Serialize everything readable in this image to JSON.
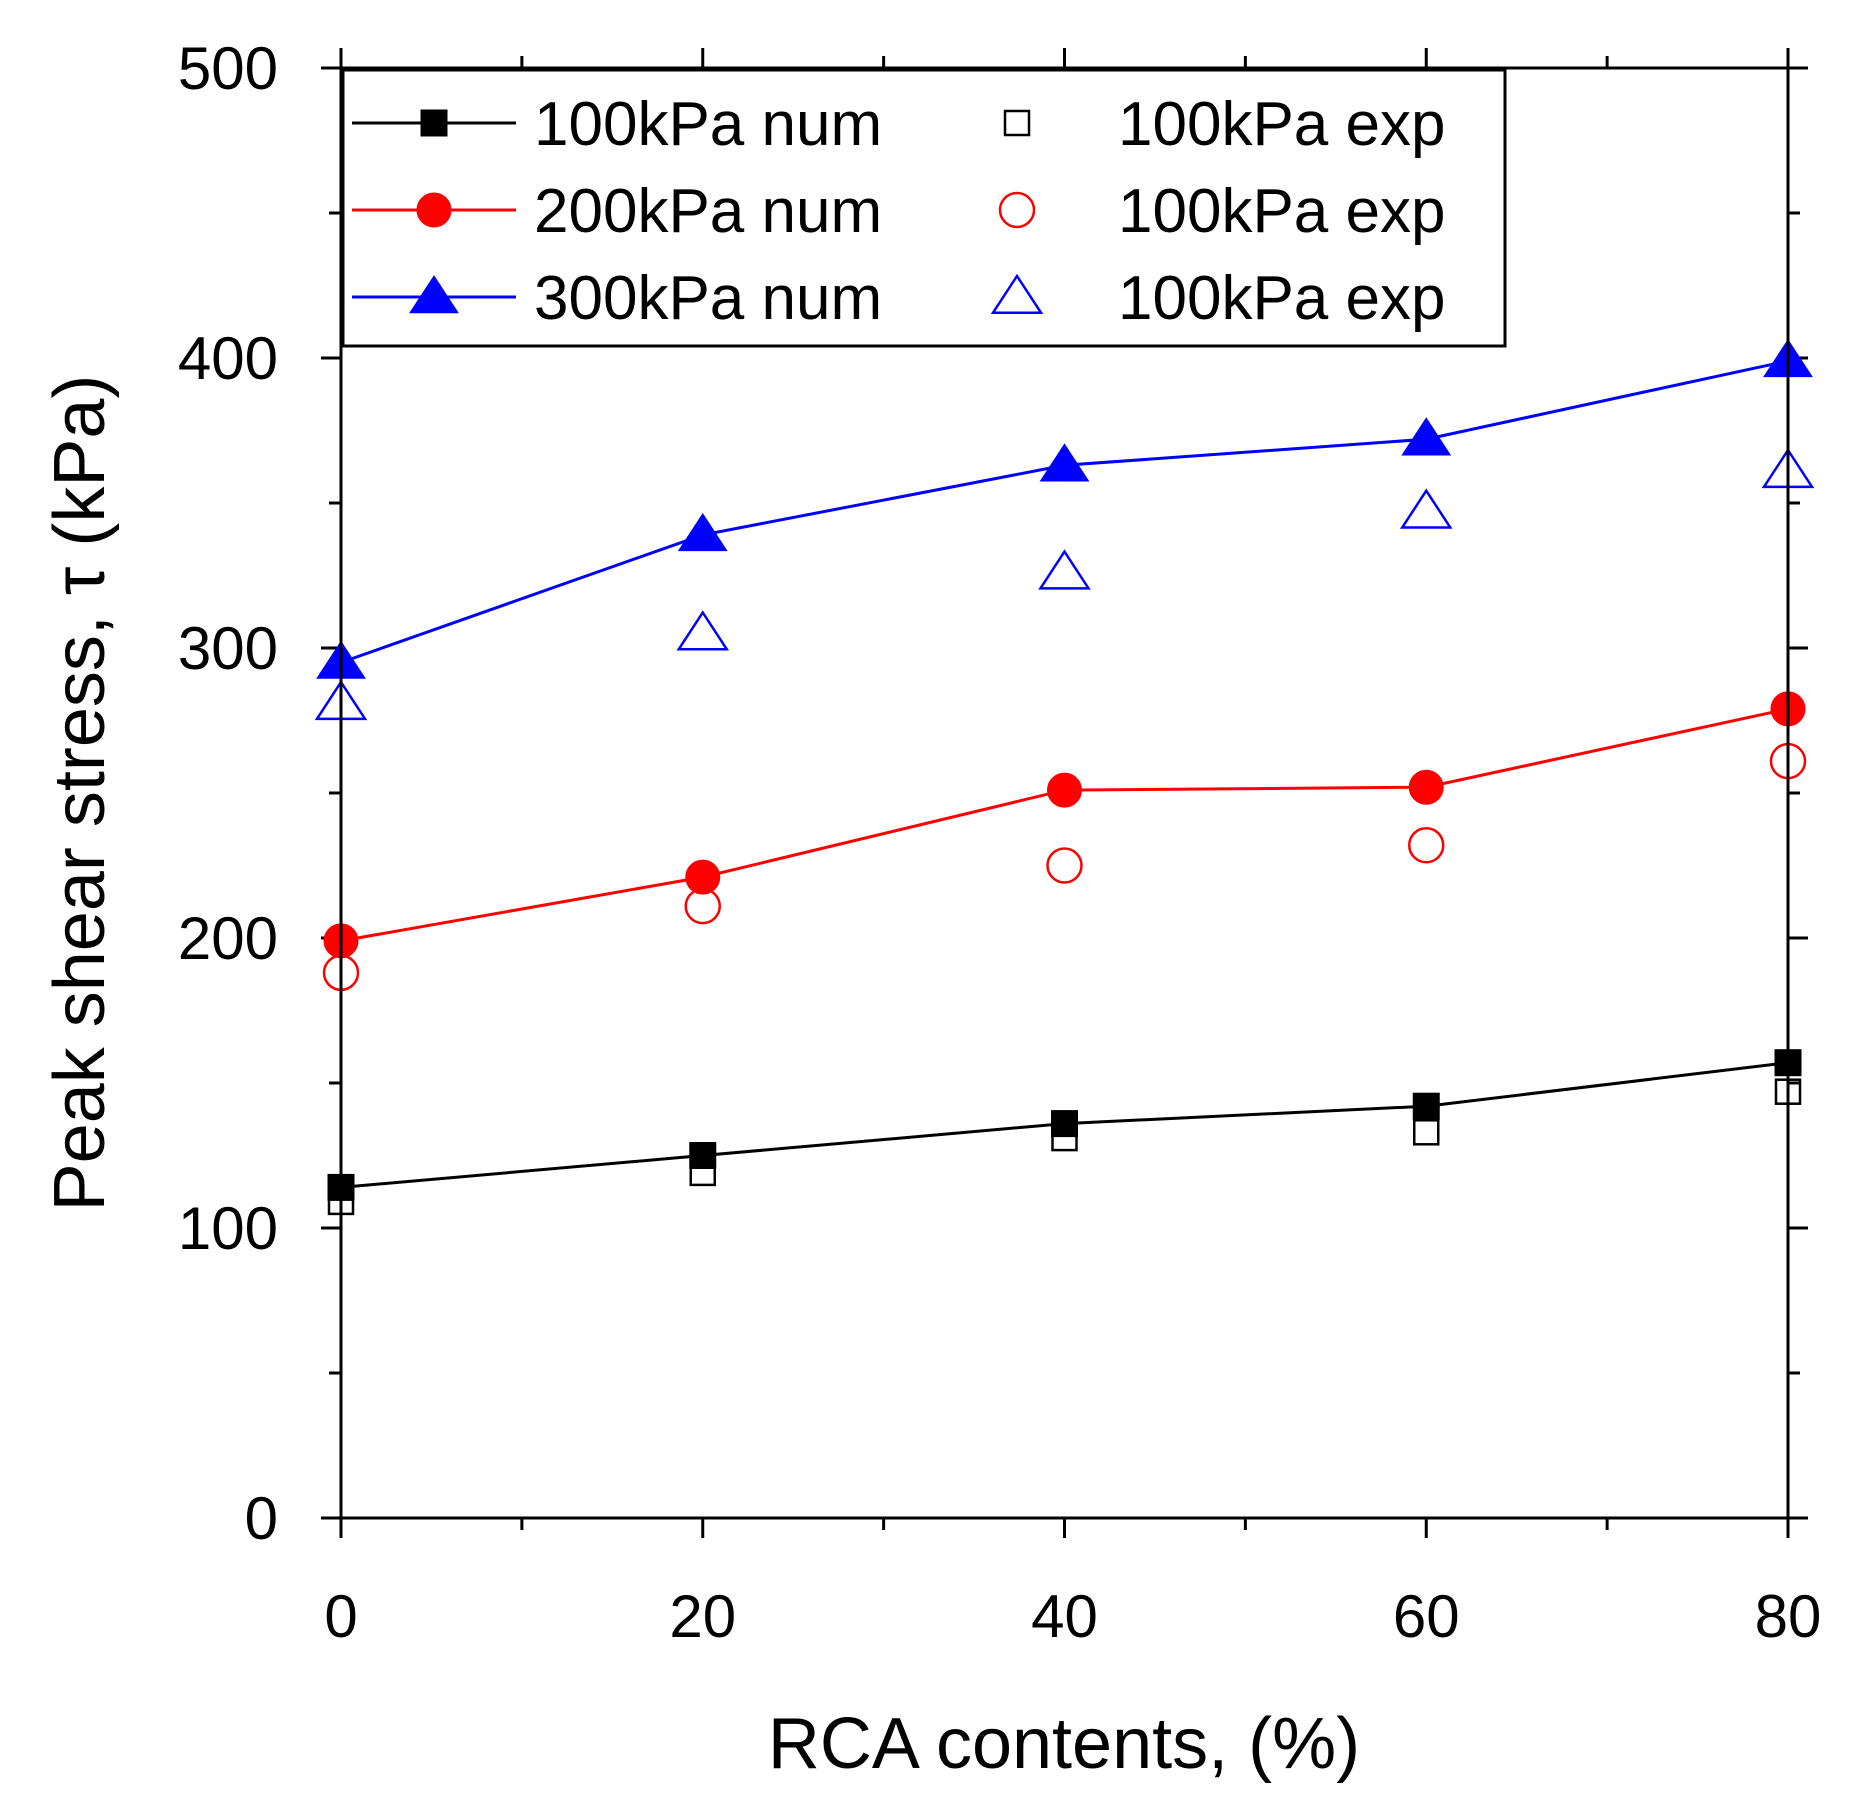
{
  "chart_data": {
    "type": "line",
    "xlabel": "RCA contents, (%)",
    "ylabel": "Peak shear stress, τ (kPa)",
    "xlim": [
      0,
      80
    ],
    "ylim": [
      0,
      500
    ],
    "xticks": [
      "0",
      "20",
      "40",
      "60",
      "80"
    ],
    "yticks": [
      "0",
      "100",
      "200",
      "300",
      "400",
      "500"
    ],
    "x": [
      0,
      20,
      40,
      60,
      80
    ],
    "grid": false,
    "legend_position": "top-left",
    "series": [
      {
        "name": "100kPa num",
        "values": [
          114,
          125,
          136,
          142,
          157
        ],
        "marker": "square",
        "filled": true,
        "line": true,
        "color": "#000000"
      },
      {
        "name": "200kPa num",
        "values": [
          199,
          221,
          251,
          252,
          279
        ],
        "marker": "circle",
        "filled": true,
        "line": true,
        "color": "#ff0000"
      },
      {
        "name": "300kPa num",
        "values": [
          295,
          339,
          363,
          372,
          399
        ],
        "marker": "triangle",
        "filled": true,
        "line": true,
        "color": "#0000ff"
      },
      {
        "name": "100kPa exp",
        "values": [
          109,
          119,
          131,
          133,
          147
        ],
        "marker": "square",
        "filled": false,
        "line": false,
        "color": "#000000"
      },
      {
        "name": "100kPa exp",
        "values": [
          188,
          211,
          225,
          232,
          261
        ],
        "marker": "circle",
        "filled": false,
        "line": false,
        "color": "#ff0000"
      },
      {
        "name": "100kPa exp",
        "values": [
          281,
          305,
          326,
          347,
          361
        ],
        "marker": "triangle",
        "filled": false,
        "line": false,
        "color": "#0000ff"
      }
    ]
  }
}
